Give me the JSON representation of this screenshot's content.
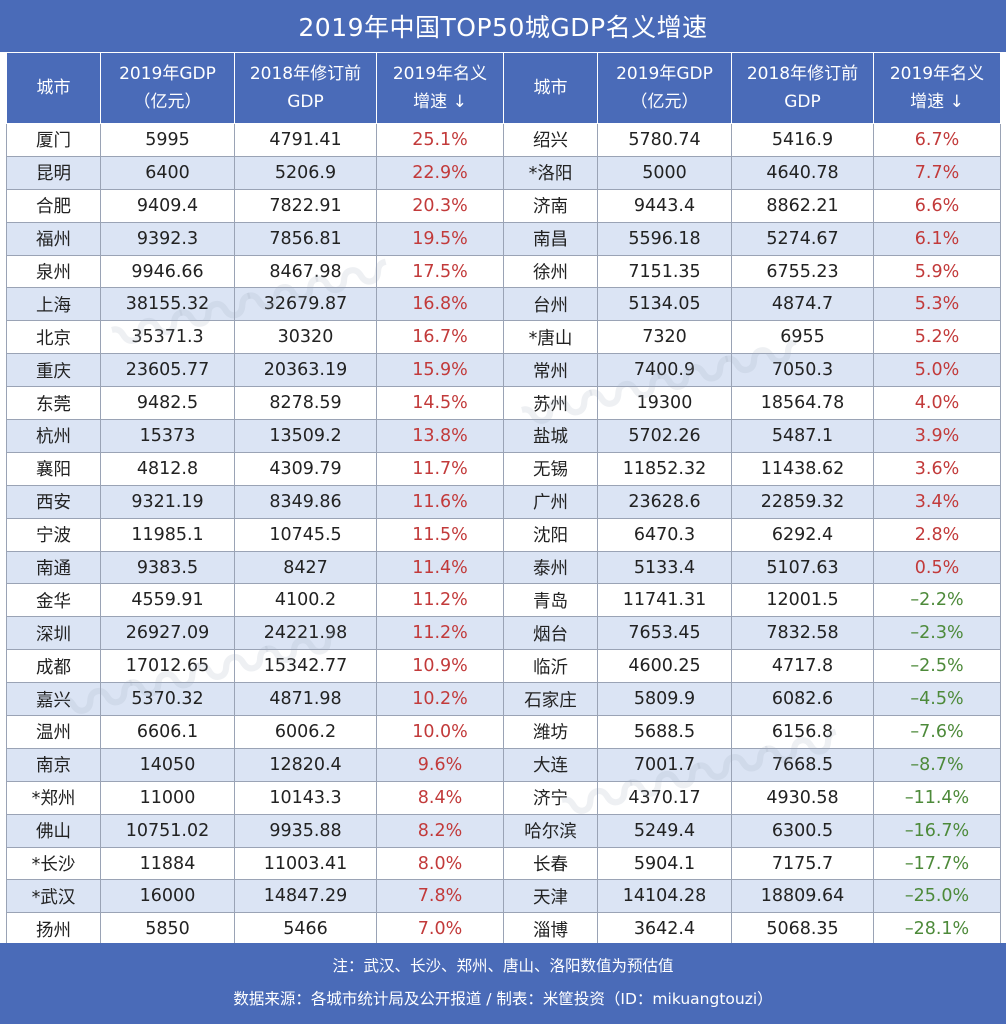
{
  "title": "2019年中国TOP50城GDP名义增速",
  "headers": {
    "city": "城市",
    "gdp2019": [
      "2019年GDP",
      "（亿元）"
    ],
    "gdp2018": [
      "2018年修订前",
      "GDP"
    ],
    "growth": [
      "2019年名义",
      "增速 ↓"
    ]
  },
  "colors": {
    "header_bg": "#4a6bb8",
    "row_alt": "#dbe4f4",
    "positive": "#c23a3a",
    "negative": "#4d8a3a"
  },
  "left_rows": [
    {
      "city": "厦门",
      "gdp2019": "5995",
      "gdp2018": "4791.41",
      "growth": "25.1%"
    },
    {
      "city": "昆明",
      "gdp2019": "6400",
      "gdp2018": "5206.9",
      "growth": "22.9%"
    },
    {
      "city": "合肥",
      "gdp2019": "9409.4",
      "gdp2018": "7822.91",
      "growth": "20.3%"
    },
    {
      "city": "福州",
      "gdp2019": "9392.3",
      "gdp2018": "7856.81",
      "growth": "19.5%"
    },
    {
      "city": "泉州",
      "gdp2019": "9946.66",
      "gdp2018": "8467.98",
      "growth": "17.5%"
    },
    {
      "city": "上海",
      "gdp2019": "38155.32",
      "gdp2018": "32679.87",
      "growth": "16.8%"
    },
    {
      "city": "北京",
      "gdp2019": "35371.3",
      "gdp2018": "30320",
      "growth": "16.7%"
    },
    {
      "city": "重庆",
      "gdp2019": "23605.77",
      "gdp2018": "20363.19",
      "growth": "15.9%"
    },
    {
      "city": "东莞",
      "gdp2019": "9482.5",
      "gdp2018": "8278.59",
      "growth": "14.5%"
    },
    {
      "city": "杭州",
      "gdp2019": "15373",
      "gdp2018": "13509.2",
      "growth": "13.8%"
    },
    {
      "city": "襄阳",
      "gdp2019": "4812.8",
      "gdp2018": "4309.79",
      "growth": "11.7%"
    },
    {
      "city": "西安",
      "gdp2019": "9321.19",
      "gdp2018": "8349.86",
      "growth": "11.6%"
    },
    {
      "city": "宁波",
      "gdp2019": "11985.1",
      "gdp2018": "10745.5",
      "growth": "11.5%"
    },
    {
      "city": "南通",
      "gdp2019": "9383.5",
      "gdp2018": "8427",
      "growth": "11.4%"
    },
    {
      "city": "金华",
      "gdp2019": "4559.91",
      "gdp2018": "4100.2",
      "growth": "11.2%"
    },
    {
      "city": "深圳",
      "gdp2019": "26927.09",
      "gdp2018": "24221.98",
      "growth": "11.2%"
    },
    {
      "city": "成都",
      "gdp2019": "17012.65",
      "gdp2018": "15342.77",
      "growth": "10.9%"
    },
    {
      "city": "嘉兴",
      "gdp2019": "5370.32",
      "gdp2018": "4871.98",
      "growth": "10.2%"
    },
    {
      "city": "温州",
      "gdp2019": "6606.1",
      "gdp2018": "6006.2",
      "growth": "10.0%"
    },
    {
      "city": "南京",
      "gdp2019": "14050",
      "gdp2018": "12820.4",
      "growth": "9.6%"
    },
    {
      "city": "*郑州",
      "gdp2019": "11000",
      "gdp2018": "10143.3",
      "growth": "8.4%"
    },
    {
      "city": "佛山",
      "gdp2019": "10751.02",
      "gdp2018": "9935.88",
      "growth": "8.2%"
    },
    {
      "city": "*长沙",
      "gdp2019": "11884",
      "gdp2018": "11003.41",
      "growth": "8.0%"
    },
    {
      "city": "*武汉",
      "gdp2019": "16000",
      "gdp2018": "14847.29",
      "growth": "7.8%"
    },
    {
      "city": "扬州",
      "gdp2019": "5850",
      "gdp2018": "5466",
      "growth": "7.0%"
    }
  ],
  "right_rows": [
    {
      "city": "绍兴",
      "gdp2019": "5780.74",
      "gdp2018": "5416.9",
      "growth": "6.7%"
    },
    {
      "city": "*洛阳",
      "gdp2019": "5000",
      "gdp2018": "4640.78",
      "growth": "7.7%"
    },
    {
      "city": "济南",
      "gdp2019": "9443.4",
      "gdp2018": "8862.21",
      "growth": "6.6%"
    },
    {
      "city": "南昌",
      "gdp2019": "5596.18",
      "gdp2018": "5274.67",
      "growth": "6.1%"
    },
    {
      "city": "徐州",
      "gdp2019": "7151.35",
      "gdp2018": "6755.23",
      "growth": "5.9%"
    },
    {
      "city": "台州",
      "gdp2019": "5134.05",
      "gdp2018": "4874.7",
      "growth": "5.3%"
    },
    {
      "city": "*唐山",
      "gdp2019": "7320",
      "gdp2018": "6955",
      "growth": "5.2%"
    },
    {
      "city": "常州",
      "gdp2019": "7400.9",
      "gdp2018": "7050.3",
      "growth": "5.0%"
    },
    {
      "city": "苏州",
      "gdp2019": "19300",
      "gdp2018": "18564.78",
      "growth": "4.0%"
    },
    {
      "city": "盐城",
      "gdp2019": "5702.26",
      "gdp2018": "5487.1",
      "growth": "3.9%"
    },
    {
      "city": "无锡",
      "gdp2019": "11852.32",
      "gdp2018": "11438.62",
      "growth": "3.6%"
    },
    {
      "city": "广州",
      "gdp2019": "23628.6",
      "gdp2018": "22859.32",
      "growth": "3.4%"
    },
    {
      "city": "沈阳",
      "gdp2019": "6470.3",
      "gdp2018": "6292.4",
      "growth": "2.8%"
    },
    {
      "city": "泰州",
      "gdp2019": "5133.4",
      "gdp2018": "5107.63",
      "growth": "0.5%"
    },
    {
      "city": "青岛",
      "gdp2019": "11741.31",
      "gdp2018": "12001.5",
      "growth": "–2.2%"
    },
    {
      "city": "烟台",
      "gdp2019": "7653.45",
      "gdp2018": "7832.58",
      "growth": "–2.3%"
    },
    {
      "city": "临沂",
      "gdp2019": "4600.25",
      "gdp2018": "4717.8",
      "growth": "–2.5%"
    },
    {
      "city": "石家庄",
      "gdp2019": "5809.9",
      "gdp2018": "6082.6",
      "growth": "–4.5%"
    },
    {
      "city": "潍坊",
      "gdp2019": "5688.5",
      "gdp2018": "6156.8",
      "growth": "–7.6%"
    },
    {
      "city": "大连",
      "gdp2019": "7001.7",
      "gdp2018": "7668.5",
      "growth": "–8.7%"
    },
    {
      "city": "济宁",
      "gdp2019": "4370.17",
      "gdp2018": "4930.58",
      "growth": "–11.4%"
    },
    {
      "city": "哈尔滨",
      "gdp2019": "5249.4",
      "gdp2018": "6300.5",
      "growth": "–16.7%"
    },
    {
      "city": "长春",
      "gdp2019": "5904.1",
      "gdp2018": "7175.7",
      "growth": "–17.7%"
    },
    {
      "city": "天津",
      "gdp2019": "14104.28",
      "gdp2018": "18809.64",
      "growth": "–25.0%"
    },
    {
      "city": "淄博",
      "gdp2019": "3642.4",
      "gdp2018": "5068.35",
      "growth": "–28.1%"
    }
  ],
  "footer": {
    "note": "注：武汉、长沙、郑州、唐山、洛阳数值为预估值",
    "source": "数据来源：各城市统计局及公开报道 / 制表：米筐投资（ID：mikuangtouzi）"
  }
}
